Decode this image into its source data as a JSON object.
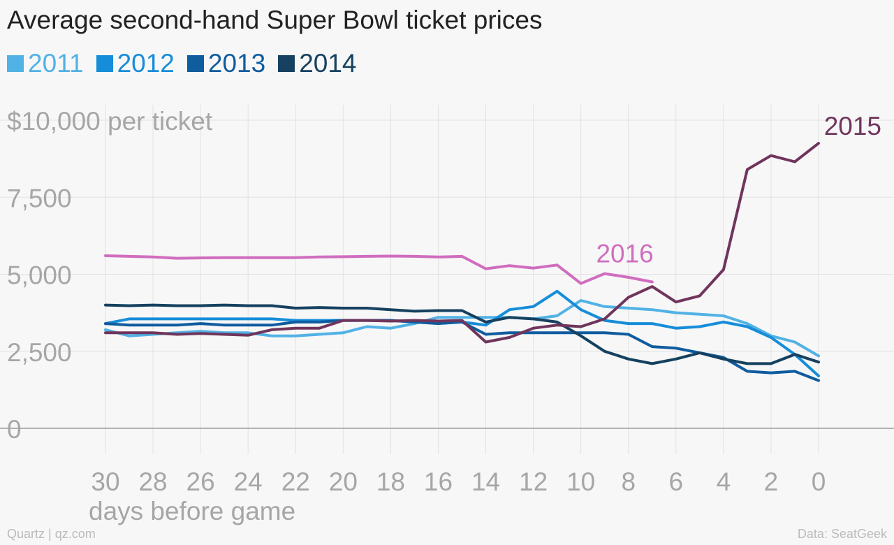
{
  "chart_data": {
    "type": "line",
    "title": "Average second-hand Super Bowl ticket prices",
    "xlabel": "days before game",
    "ylabel": "$10,000 per ticket",
    "x_ticks": [
      30,
      28,
      26,
      24,
      22,
      20,
      18,
      16,
      14,
      12,
      10,
      8,
      6,
      4,
      2,
      0
    ],
    "y_tick_labels": [
      {
        "value": 0,
        "label": "0"
      },
      {
        "value": 2500,
        "label": "2,500"
      },
      {
        "value": 5000,
        "label": "5,000"
      },
      {
        "value": 7500,
        "label": "7,500"
      }
    ],
    "top_tick": {
      "value": 10000,
      "label": "$10,000 per ticket"
    },
    "xlim": [
      30,
      0
    ],
    "ylim": [
      0,
      10000
    ],
    "grid": true,
    "legend_position": "top-left",
    "series": [
      {
        "name": "2011",
        "color": "#51b2e5",
        "in_legend": true,
        "x": [
          30,
          29,
          28,
          27,
          26,
          25,
          24,
          23,
          22,
          21,
          20,
          19,
          18,
          17,
          16,
          15,
          14,
          13,
          12,
          11,
          10,
          9,
          8,
          7,
          6,
          5,
          4,
          3,
          2,
          1,
          0
        ],
        "y": [
          3200,
          3000,
          3050,
          3100,
          3150,
          3100,
          3100,
          3000,
          3000,
          3050,
          3100,
          3300,
          3250,
          3400,
          3600,
          3600,
          3600,
          3600,
          3550,
          3650,
          4150,
          3950,
          3900,
          3850,
          3750,
          3700,
          3650,
          3400,
          3000,
          2800,
          2350
        ]
      },
      {
        "name": "2012",
        "color": "#168dd9",
        "in_legend": true,
        "x": [
          30,
          29,
          28,
          27,
          26,
          25,
          24,
          23,
          22,
          21,
          20,
          19,
          18,
          17,
          16,
          15,
          14,
          13,
          12,
          11,
          10,
          9,
          8,
          7,
          6,
          5,
          4,
          3,
          2,
          1,
          0
        ],
        "y": [
          3400,
          3550,
          3550,
          3550,
          3550,
          3550,
          3550,
          3550,
          3500,
          3500,
          3500,
          3500,
          3500,
          3450,
          3450,
          3450,
          3350,
          3850,
          3950,
          4450,
          3850,
          3500,
          3400,
          3400,
          3250,
          3300,
          3450,
          3300,
          2950,
          2400,
          1700
        ]
      },
      {
        "name": "2013",
        "color": "#0f5c9f",
        "in_legend": true,
        "x": [
          30,
          29,
          28,
          27,
          26,
          25,
          24,
          23,
          22,
          21,
          20,
          19,
          18,
          17,
          16,
          15,
          14,
          13,
          12,
          11,
          10,
          9,
          8,
          7,
          6,
          5,
          4,
          3,
          2,
          1,
          0
        ],
        "y": [
          3400,
          3350,
          3350,
          3350,
          3400,
          3350,
          3350,
          3350,
          3450,
          3450,
          3500,
          3500,
          3500,
          3450,
          3400,
          3450,
          3050,
          3100,
          3100,
          3100,
          3100,
          3100,
          3050,
          2650,
          2600,
          2450,
          2300,
          1850,
          1800,
          1850,
          1550
        ]
      },
      {
        "name": "2014",
        "color": "#164160",
        "in_legend": true,
        "x": [
          30,
          29,
          28,
          27,
          26,
          25,
          24,
          23,
          22,
          21,
          20,
          19,
          18,
          17,
          16,
          15,
          14,
          13,
          12,
          11,
          10,
          9,
          8,
          7,
          6,
          5,
          4,
          3,
          2,
          1,
          0
        ],
        "y": [
          4000,
          3980,
          4000,
          3980,
          3980,
          4000,
          3980,
          3980,
          3900,
          3920,
          3900,
          3900,
          3850,
          3800,
          3820,
          3820,
          3450,
          3600,
          3550,
          3450,
          3000,
          2500,
          2250,
          2100,
          2250,
          2450,
          2250,
          2100,
          2100,
          2400,
          2150
        ]
      },
      {
        "name": "2015",
        "color": "#70355c",
        "in_legend": false,
        "label": "2015",
        "x": [
          30,
          29,
          28,
          27,
          26,
          25,
          24,
          23,
          22,
          21,
          20,
          19,
          18,
          17,
          16,
          15,
          14,
          13,
          12,
          11,
          10,
          9,
          8,
          7,
          6,
          5,
          4,
          3,
          2,
          1,
          0
        ],
        "y": [
          3100,
          3100,
          3100,
          3050,
          3080,
          3050,
          3020,
          3200,
          3250,
          3250,
          3500,
          3500,
          3480,
          3500,
          3480,
          3500,
          2800,
          2950,
          3250,
          3350,
          3300,
          3550,
          4250,
          4600,
          4100,
          4300,
          5150,
          8400,
          8850,
          8650,
          9250
        ]
      },
      {
        "name": "2016",
        "color": "#d06dbf",
        "in_legend": false,
        "label": "2016",
        "x": [
          30,
          29,
          28,
          27,
          26,
          25,
          24,
          23,
          22,
          21,
          20,
          19,
          18,
          17,
          16,
          15,
          14,
          13,
          12,
          11,
          10,
          9,
          8,
          7
        ],
        "y": [
          5600,
          5580,
          5560,
          5520,
          5530,
          5540,
          5540,
          5540,
          5540,
          5560,
          5570,
          5580,
          5590,
          5580,
          5560,
          5580,
          5180,
          5280,
          5200,
          5300,
          4700,
          5020,
          4900,
          4750
        ]
      }
    ]
  },
  "footer": {
    "source": "Quartz | qz.com",
    "data_credit": "Data: SeatGeek"
  }
}
